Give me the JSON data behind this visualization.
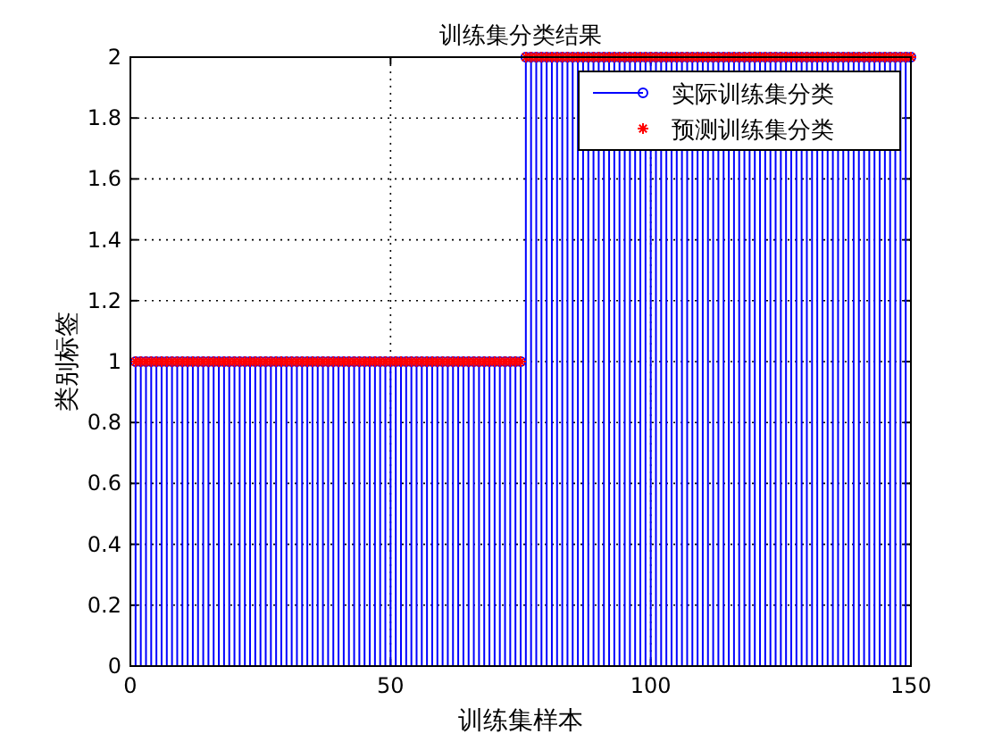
{
  "chart_data": {
    "type": "scatter",
    "title": "训练集分类结果",
    "xlabel": "训练集样本",
    "ylabel": "类别标签",
    "xlim": [
      0,
      150
    ],
    "ylim": [
      0,
      2
    ],
    "xticks": [
      0,
      50,
      100,
      150
    ],
    "yticks": [
      0,
      0.2,
      0.4,
      0.6,
      0.8,
      1,
      1.2,
      1.4,
      1.6,
      1.8,
      2
    ],
    "grid": true,
    "legend": "top right",
    "x": [
      1,
      2,
      3,
      4,
      5,
      6,
      7,
      8,
      9,
      10,
      11,
      12,
      13,
      14,
      15,
      16,
      17,
      18,
      19,
      20,
      21,
      22,
      23,
      24,
      25,
      26,
      27,
      28,
      29,
      30,
      31,
      32,
      33,
      34,
      35,
      36,
      37,
      38,
      39,
      40,
      41,
      42,
      43,
      44,
      45,
      46,
      47,
      48,
      49,
      50,
      51,
      52,
      53,
      54,
      55,
      56,
      57,
      58,
      59,
      60,
      61,
      62,
      63,
      64,
      65,
      66,
      67,
      68,
      69,
      70,
      71,
      72,
      73,
      74,
      75,
      76,
      77,
      78,
      79,
      80,
      81,
      82,
      83,
      84,
      85,
      86,
      87,
      88,
      89,
      90,
      91,
      92,
      93,
      94,
      95,
      96,
      97,
      98,
      99,
      100,
      101,
      102,
      103,
      104,
      105,
      106,
      107,
      108,
      109,
      110,
      111,
      112,
      113,
      114,
      115,
      116,
      117,
      118,
      119,
      120,
      121,
      122,
      123,
      124,
      125,
      126,
      127,
      128,
      129,
      130,
      131,
      132,
      133,
      134,
      135,
      136,
      137,
      138,
      139,
      140,
      141,
      142,
      143,
      144,
      145,
      146,
      147,
      148,
      149,
      150
    ],
    "series": [
      {
        "name": "实际训练集分类",
        "type": "lollipop",
        "marker": "circle",
        "color": "#0000ff",
        "values": [
          1,
          1,
          1,
          1,
          1,
          1,
          1,
          1,
          1,
          1,
          1,
          1,
          1,
          1,
          1,
          1,
          1,
          1,
          1,
          1,
          1,
          1,
          1,
          1,
          1,
          1,
          1,
          1,
          1,
          1,
          1,
          1,
          1,
          1,
          1,
          1,
          1,
          1,
          1,
          1,
          1,
          1,
          1,
          1,
          1,
          1,
          1,
          1,
          1,
          1,
          1,
          1,
          1,
          1,
          1,
          1,
          1,
          1,
          1,
          1,
          1,
          1,
          1,
          1,
          1,
          1,
          1,
          1,
          1,
          1,
          1,
          1,
          1,
          1,
          1,
          2,
          2,
          2,
          2,
          2,
          2,
          2,
          2,
          2,
          2,
          2,
          2,
          2,
          2,
          2,
          2,
          2,
          2,
          2,
          2,
          2,
          2,
          2,
          2,
          2,
          2,
          2,
          2,
          2,
          2,
          2,
          2,
          2,
          2,
          2,
          2,
          2,
          2,
          2,
          2,
          2,
          2,
          2,
          2,
          2,
          2,
          2,
          2,
          2,
          2,
          2,
          2,
          2,
          2,
          2,
          2,
          2,
          2,
          2,
          2,
          2,
          2,
          2,
          2,
          2,
          2,
          2,
          2,
          2,
          2,
          2,
          2,
          2,
          2,
          2
        ]
      },
      {
        "name": "预测训练集分类",
        "marker": "cross",
        "color": "#ff0000",
        "values": [
          1,
          1,
          1,
          1,
          1,
          1,
          1,
          1,
          1,
          1,
          1,
          1,
          1,
          1,
          1,
          1,
          1,
          1,
          1,
          1,
          1,
          1,
          1,
          1,
          1,
          1,
          1,
          1,
          1,
          1,
          1,
          1,
          1,
          1,
          1,
          1,
          1,
          1,
          1,
          1,
          1,
          1,
          1,
          1,
          1,
          1,
          1,
          1,
          1,
          1,
          1,
          1,
          1,
          1,
          1,
          1,
          1,
          1,
          1,
          1,
          1,
          1,
          1,
          1,
          1,
          1,
          1,
          1,
          1,
          1,
          1,
          1,
          1,
          1,
          1,
          2,
          2,
          2,
          2,
          2,
          2,
          2,
          2,
          2,
          2,
          2,
          2,
          2,
          2,
          2,
          2,
          2,
          2,
          2,
          2,
          2,
          2,
          2,
          2,
          2,
          2,
          2,
          2,
          2,
          2,
          2,
          2,
          2,
          2,
          2,
          2,
          2,
          2,
          2,
          2,
          2,
          2,
          2,
          2,
          2,
          2,
          2,
          2,
          2,
          2,
          2,
          2,
          2,
          2,
          2,
          2,
          2,
          2,
          2,
          2,
          2,
          2,
          2,
          2,
          2,
          2,
          2,
          2,
          2,
          2,
          2,
          2,
          2,
          2,
          2
        ]
      }
    ]
  }
}
